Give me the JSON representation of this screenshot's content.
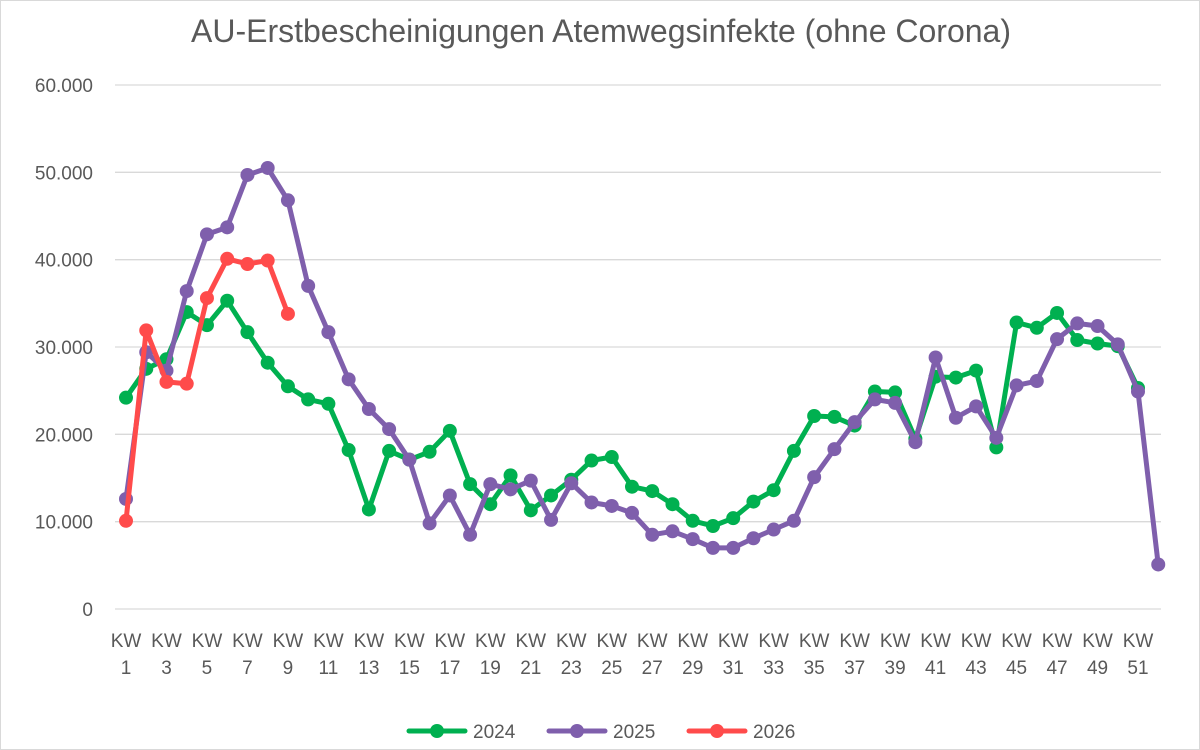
{
  "chart_data": {
    "type": "line",
    "title": "AU-Erstbescheinigungen Atemwegsinfekte (ohne Corona)",
    "xlabel": "",
    "ylabel": "",
    "ylim": [
      0,
      60000
    ],
    "y_ticks": [
      0,
      10000,
      20000,
      30000,
      40000,
      50000,
      60000
    ],
    "y_tick_labels": [
      "0",
      "10.000",
      "20.000",
      "30.000",
      "40.000",
      "50.000",
      "60.000"
    ],
    "x_weeks": [
      1,
      2,
      3,
      4,
      5,
      6,
      7,
      8,
      9,
      10,
      11,
      12,
      13,
      14,
      15,
      16,
      17,
      18,
      19,
      20,
      21,
      22,
      23,
      24,
      25,
      26,
      27,
      28,
      29,
      30,
      31,
      32,
      33,
      34,
      35,
      36,
      37,
      38,
      39,
      40,
      41,
      42,
      43,
      44,
      45,
      46,
      47,
      48,
      49,
      50,
      51,
      52
    ],
    "x_tick_labels": [
      {
        "week": 1,
        "line1": "KW",
        "line2": "1"
      },
      {
        "week": 3,
        "line1": "KW",
        "line2": "3"
      },
      {
        "week": 5,
        "line1": "KW",
        "line2": "5"
      },
      {
        "week": 7,
        "line1": "KW",
        "line2": "7"
      },
      {
        "week": 9,
        "line1": "KW",
        "line2": "9"
      },
      {
        "week": 11,
        "line1": "KW",
        "line2": "11"
      },
      {
        "week": 13,
        "line1": "KW",
        "line2": "13"
      },
      {
        "week": 15,
        "line1": "KW",
        "line2": "15"
      },
      {
        "week": 17,
        "line1": "KW",
        "line2": "17"
      },
      {
        "week": 19,
        "line1": "KW",
        "line2": "19"
      },
      {
        "week": 21,
        "line1": "KW",
        "line2": "21"
      },
      {
        "week": 23,
        "line1": "KW",
        "line2": "23"
      },
      {
        "week": 25,
        "line1": "KW",
        "line2": "25"
      },
      {
        "week": 27,
        "line1": "KW",
        "line2": "27"
      },
      {
        "week": 29,
        "line1": "KW",
        "line2": "29"
      },
      {
        "week": 31,
        "line1": "KW",
        "line2": "31"
      },
      {
        "week": 33,
        "line1": "KW",
        "line2": "33"
      },
      {
        "week": 35,
        "line1": "KW",
        "line2": "35"
      },
      {
        "week": 37,
        "line1": "KW",
        "line2": "37"
      },
      {
        "week": 39,
        "line1": "KW",
        "line2": "39"
      },
      {
        "week": 41,
        "line1": "KW",
        "line2": "41"
      },
      {
        "week": 43,
        "line1": "KW",
        "line2": "43"
      },
      {
        "week": 45,
        "line1": "KW",
        "line2": "45"
      },
      {
        "week": 47,
        "line1": "KW",
        "line2": "47"
      },
      {
        "week": 49,
        "line1": "KW",
        "line2": "49"
      },
      {
        "week": 51,
        "line1": "KW",
        "line2": "51"
      }
    ],
    "series": [
      {
        "name": "2024",
        "color": "#00b050",
        "start_week": 1,
        "values": [
          24200,
          27500,
          28600,
          34000,
          32500,
          35300,
          31700,
          28200,
          25500,
          24000,
          23500,
          18200,
          11400,
          18100,
          17100,
          18000,
          20400,
          14300,
          12000,
          15300,
          11300,
          13000,
          14800,
          17000,
          17400,
          14000,
          13500,
          12000,
          10100,
          9500,
          10400,
          12300,
          13600,
          18100,
          22100,
          22000,
          21000,
          24900,
          24800,
          19500,
          26600,
          26500,
          27300,
          18500,
          32800,
          32200,
          33900,
          30800,
          30400,
          30100,
          25300,
          null
        ]
      },
      {
        "name": "2025",
        "color": "#7f5fac",
        "start_week": 1,
        "values": [
          12600,
          29400,
          27300,
          36400,
          42900,
          43700,
          49700,
          50500,
          46800,
          37000,
          31700,
          26300,
          22900,
          20600,
          17100,
          9800,
          13000,
          8500,
          14300,
          13700,
          14700,
          10200,
          14400,
          12200,
          11800,
          11000,
          8500,
          8900,
          8000,
          7000,
          7000,
          8100,
          9100,
          10100,
          15100,
          18300,
          21400,
          24000,
          23600,
          19100,
          28800,
          21900,
          23200,
          19600,
          25600,
          26100,
          30900,
          32700,
          32400,
          30300,
          24900,
          5100
        ]
      },
      {
        "name": "2026",
        "color": "#ff4b4b",
        "start_week": 1,
        "values": [
          10100,
          31900,
          26000,
          25800,
          35600,
          40100,
          39500,
          39900,
          33800,
          null,
          null,
          null,
          null,
          null,
          null,
          null,
          null,
          null,
          null,
          null,
          null,
          null,
          null,
          null,
          null,
          null,
          null,
          null,
          null,
          null,
          null,
          null,
          null,
          null,
          null,
          null,
          null,
          null,
          null,
          null,
          null,
          null,
          null,
          null,
          null,
          null,
          null,
          null,
          null,
          null,
          null,
          null
        ]
      }
    ],
    "connector": {
      "color": "#bfbfbf",
      "from": {
        "week": 9,
        "value": 25500
      },
      "to": {
        "week": 10,
        "value": 24000
      }
    },
    "gridlines": true,
    "legend_position": "bottom-center"
  }
}
